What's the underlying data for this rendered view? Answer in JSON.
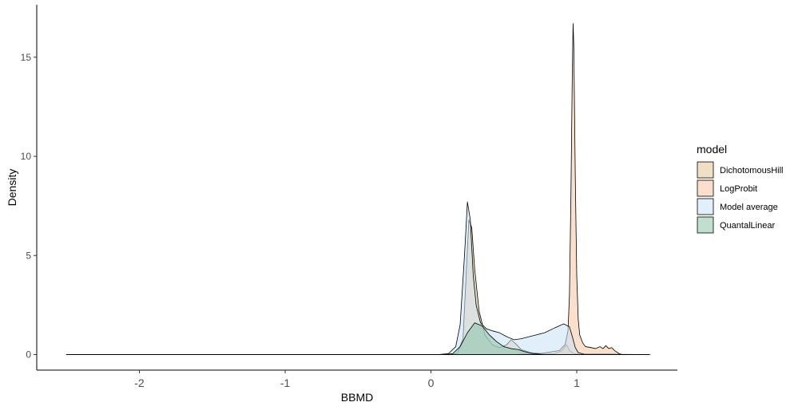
{
  "chart_data": {
    "type": "area",
    "subtype": "density",
    "title": "",
    "xlabel": "BBMD",
    "ylabel": "Density",
    "xlim": [
      -2.5,
      1.5
    ],
    "ylim": [
      0,
      17
    ],
    "x_ticks": [
      -2,
      -1,
      0,
      1
    ],
    "x_tick_labels": [
      "-2",
      "-1",
      "0",
      "1"
    ],
    "y_ticks": [
      0,
      5,
      10,
      15
    ],
    "y_tick_labels": [
      "0",
      "5",
      "10",
      "15"
    ],
    "grid": false,
    "legend": {
      "title": "model",
      "position": "right"
    },
    "series": [
      {
        "name": "DichotomousHill",
        "color": "#e5c494",
        "points": [
          [
            -2.5,
            0
          ],
          [
            0.1,
            0
          ],
          [
            0.18,
            0.05
          ],
          [
            0.22,
            0.8
          ],
          [
            0.24,
            3.8
          ],
          [
            0.26,
            6.8
          ],
          [
            0.28,
            6.4
          ],
          [
            0.3,
            4.3
          ],
          [
            0.33,
            2.2
          ],
          [
            0.37,
            1.0
          ],
          [
            0.42,
            0.5
          ],
          [
            0.47,
            0.35
          ],
          [
            0.52,
            0.5
          ],
          [
            0.55,
            0.75
          ],
          [
            0.58,
            0.55
          ],
          [
            0.62,
            0.25
          ],
          [
            0.68,
            0.1
          ],
          [
            0.75,
            0.05
          ],
          [
            0.85,
            0.05
          ],
          [
            0.9,
            0.2
          ],
          [
            0.93,
            0.5
          ],
          [
            0.95,
            0.2
          ],
          [
            0.98,
            0.05
          ],
          [
            1.05,
            0
          ],
          [
            1.5,
            0
          ]
        ]
      },
      {
        "name": "LogProbit",
        "color": "#f4c4a2",
        "points": [
          [
            -2.5,
            0
          ],
          [
            0.55,
            0
          ],
          [
            0.75,
            0.05
          ],
          [
            0.88,
            0.2
          ],
          [
            0.92,
            0.5
          ],
          [
            0.94,
            1.2
          ],
          [
            0.95,
            3.0
          ],
          [
            0.96,
            8.0
          ],
          [
            0.97,
            14.5
          ],
          [
            0.975,
            16.7
          ],
          [
            0.98,
            15.5
          ],
          [
            0.99,
            9.0
          ],
          [
            1.0,
            4.0
          ],
          [
            1.01,
            1.8
          ],
          [
            1.02,
            1.0
          ],
          [
            1.04,
            0.6
          ],
          [
            1.06,
            0.4
          ],
          [
            1.1,
            0.35
          ],
          [
            1.13,
            0.3
          ],
          [
            1.16,
            0.4
          ],
          [
            1.18,
            0.3
          ],
          [
            1.2,
            0.45
          ],
          [
            1.22,
            0.3
          ],
          [
            1.24,
            0.35
          ],
          [
            1.26,
            0.2
          ],
          [
            1.29,
            0.05
          ],
          [
            1.31,
            0
          ],
          [
            1.5,
            0
          ]
        ]
      },
      {
        "name": "Model average",
        "color": "#c6e2f5",
        "points": [
          [
            -2.5,
            0
          ],
          [
            0.05,
            0
          ],
          [
            0.12,
            0.05
          ],
          [
            0.17,
            0.4
          ],
          [
            0.2,
            1.5
          ],
          [
            0.23,
            5.0
          ],
          [
            0.25,
            7.7
          ],
          [
            0.27,
            6.8
          ],
          [
            0.29,
            4.0
          ],
          [
            0.31,
            2.5
          ],
          [
            0.34,
            1.6
          ],
          [
            0.38,
            1.3
          ],
          [
            0.42,
            1.2
          ],
          [
            0.47,
            1.1
          ],
          [
            0.52,
            0.9
          ],
          [
            0.57,
            0.75
          ],
          [
            0.62,
            0.8
          ],
          [
            0.7,
            0.95
          ],
          [
            0.78,
            1.1
          ],
          [
            0.85,
            1.35
          ],
          [
            0.91,
            1.55
          ],
          [
            0.95,
            1.4
          ],
          [
            0.97,
            0.9
          ],
          [
            0.99,
            0.35
          ],
          [
            1.01,
            0.1
          ],
          [
            1.05,
            0.02
          ],
          [
            1.5,
            0
          ]
        ]
      },
      {
        "name": "QuantalLinear",
        "color": "#8dc4a8",
        "points": [
          [
            -2.5,
            0
          ],
          [
            0.1,
            0
          ],
          [
            0.15,
            0.05
          ],
          [
            0.2,
            0.4
          ],
          [
            0.25,
            1.1
          ],
          [
            0.3,
            1.6
          ],
          [
            0.35,
            1.45
          ],
          [
            0.4,
            1.0
          ],
          [
            0.45,
            0.65
          ],
          [
            0.5,
            0.4
          ],
          [
            0.55,
            0.3
          ],
          [
            0.6,
            0.25
          ],
          [
            0.64,
            0.15
          ],
          [
            0.7,
            0.05
          ],
          [
            0.78,
            0
          ],
          [
            1.5,
            0
          ]
        ]
      }
    ]
  }
}
